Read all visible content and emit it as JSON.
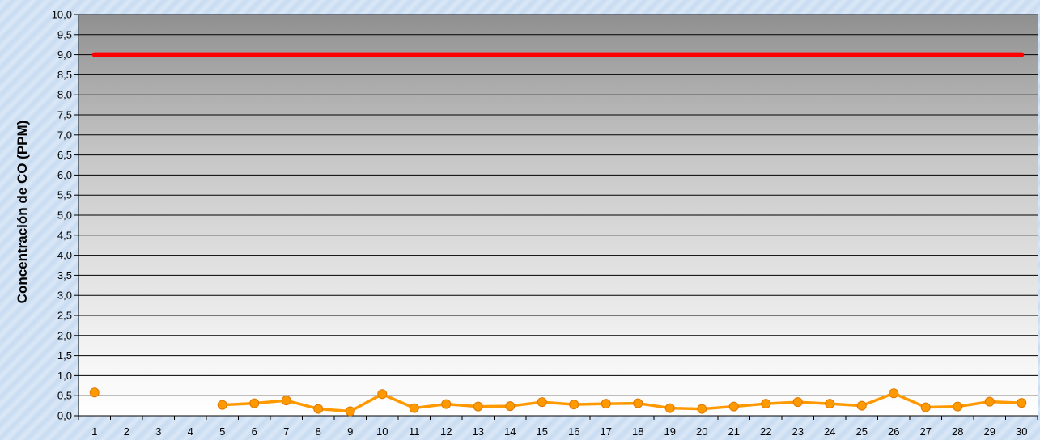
{
  "chart_data": {
    "type": "line",
    "title": "",
    "xlabel": "",
    "ylabel": "Concentración de CO (PPM)",
    "ylim": [
      0,
      10
    ],
    "ytick_step": 0.5,
    "decimal_separator": ",",
    "grid": true,
    "categories": [
      "1",
      "2",
      "3",
      "4",
      "5",
      "6",
      "7",
      "8",
      "9",
      "10",
      "11",
      "12",
      "13",
      "14",
      "15",
      "16",
      "17",
      "18",
      "19",
      "20",
      "21",
      "22",
      "23",
      "24",
      "25",
      "26",
      "27",
      "28",
      "29",
      "30"
    ],
    "series": [
      {
        "color": "#ff9900",
        "marker": "circle",
        "values": [
          0.58,
          null,
          null,
          null,
          0.27,
          0.31,
          0.38,
          0.17,
          0.11,
          0.54,
          0.19,
          0.29,
          0.23,
          0.24,
          0.34,
          0.28,
          0.3,
          0.31,
          0.19,
          0.17,
          0.23,
          0.3,
          0.34,
          0.3,
          0.25,
          0.56,
          0.21,
          0.23,
          0.35,
          0.32
        ]
      },
      {
        "color": "#ff0000",
        "marker": "none",
        "values": [
          9.0,
          9.0,
          9.0,
          9.0,
          9.0,
          9.0,
          9.0,
          9.0,
          9.0,
          9.0,
          9.0,
          9.0,
          9.0,
          9.0,
          9.0,
          9.0,
          9.0,
          9.0,
          9.0,
          9.0,
          9.0,
          9.0,
          9.0,
          9.0,
          9.0,
          9.0,
          9.0,
          9.0,
          9.0,
          9.0
        ]
      }
    ]
  }
}
